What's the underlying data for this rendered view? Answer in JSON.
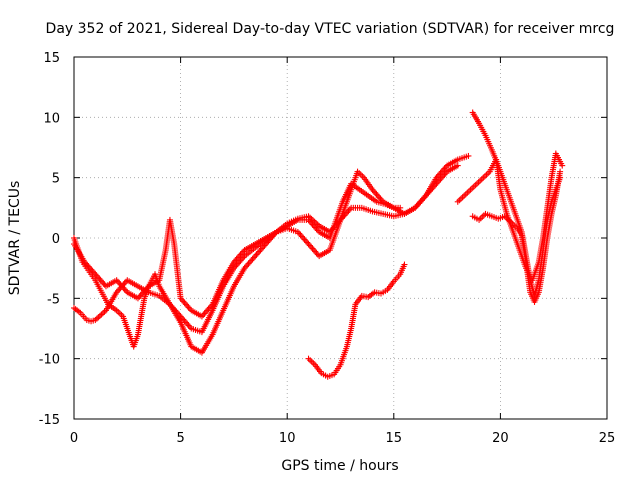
{
  "chart_data": {
    "type": "scatter",
    "title": "Day 352 of 2021, Sidereal Day-to-day VTEC variation (SDTVAR) for receiver mrcg",
    "xlabel": "GPS time / hours",
    "ylabel": "SDTVAR / TECUs",
    "xlim": [
      0,
      25
    ],
    "ylim": [
      -15,
      15
    ],
    "x_ticks": [
      "0",
      "5",
      "10",
      "15",
      "20",
      "25"
    ],
    "y_ticks": [
      "-15",
      "-10",
      "-5",
      "0",
      "5",
      "10",
      "15"
    ],
    "grid": true,
    "marker": "+",
    "color": "#ff0000",
    "series": [
      {
        "x": [
          0.0,
          0.3,
          0.6,
          0.8,
          1.0,
          1.5,
          2.0,
          2.5,
          3.0,
          3.5,
          4.0,
          4.5,
          5.0,
          5.5,
          6.0,
          6.5,
          7.0,
          7.5,
          8.0,
          8.5,
          9.0,
          9.5,
          10.0,
          10.5,
          11.0,
          11.5,
          12.0,
          12.5,
          13.0,
          13.5,
          14.0,
          14.5,
          15.0,
          15.5,
          16.0,
          16.5,
          17.0,
          17.5,
          18.0
        ],
        "y": [
          -5.8,
          -6.2,
          -6.8,
          -6.9,
          -6.8,
          -6.0,
          -4.5,
          -3.5,
          -4.0,
          -4.5,
          -4.8,
          -5.5,
          -6.5,
          -7.5,
          -7.8,
          -6.0,
          -4.0,
          -2.5,
          -1.5,
          -0.8,
          -0.2,
          0.5,
          1.2,
          1.6,
          1.8,
          1.0,
          0.5,
          1.5,
          2.5,
          2.5,
          2.2,
          2.0,
          1.8,
          2.0,
          2.5,
          3.5,
          4.5,
          5.5,
          6.0
        ]
      },
      {
        "x": [
          0.0,
          0.2,
          0.4,
          0.6,
          0.8,
          1.0,
          1.3,
          1.6,
          2.0,
          2.3,
          2.6,
          2.8,
          3.0,
          3.3,
          3.5,
          3.8,
          4.0,
          4.5,
          5.0,
          5.5,
          6.0,
          6.5,
          7.0,
          7.5,
          8.0,
          8.5,
          9.0,
          9.5,
          10.0,
          10.5,
          11.0,
          11.5,
          12.0,
          12.3,
          12.6,
          13.0,
          13.3,
          13.6,
          14.0,
          14.5,
          15.0,
          15.5,
          16.0,
          16.5,
          17.0,
          17.5,
          18.0,
          18.5
        ],
        "y": [
          0.0,
          -1.0,
          -2.0,
          -2.5,
          -3.0,
          -3.5,
          -4.5,
          -5.5,
          -6.0,
          -6.5,
          -8.0,
          -9.0,
          -8.0,
          -5.0,
          -4.0,
          -3.0,
          -4.0,
          -5.5,
          -7.0,
          -9.0,
          -9.5,
          -8.0,
          -6.0,
          -4.0,
          -2.5,
          -1.5,
          -0.5,
          0.5,
          0.8,
          0.5,
          -0.5,
          -1.5,
          -1.0,
          0.5,
          2.0,
          4.0,
          5.5,
          5.0,
          4.0,
          3.0,
          2.5,
          2.0,
          2.5,
          3.5,
          5.0,
          6.0,
          6.5,
          6.8
        ]
      },
      {
        "x": [
          0.0,
          0.5,
          1.0,
          1.5,
          2.0,
          2.5,
          3.0,
          3.5,
          4.0,
          4.3,
          4.5,
          4.7,
          5.0,
          5.5,
          6.0,
          6.5,
          7.0,
          7.5,
          8.0,
          8.5,
          9.0,
          9.5,
          10.0,
          10.5,
          11.0,
          11.5,
          12.0,
          12.3,
          12.6,
          13.0,
          13.4,
          13.8,
          14.2,
          14.6,
          15.0,
          15.3
        ],
        "y": [
          -0.5,
          -2.0,
          -3.0,
          -4.0,
          -3.5,
          -4.5,
          -5.0,
          -4.0,
          -3.5,
          -1.0,
          1.5,
          -0.5,
          -5.0,
          -6.0,
          -6.5,
          -5.5,
          -3.5,
          -2.0,
          -1.0,
          -0.5,
          0.0,
          0.5,
          1.0,
          1.5,
          1.5,
          0.5,
          0.0,
          1.5,
          3.0,
          4.5,
          4.0,
          3.5,
          3.0,
          2.8,
          2.5,
          2.5
        ]
      },
      {
        "x": [
          11.0,
          11.3,
          11.6,
          11.9,
          12.2,
          12.5,
          12.8,
          13.0,
          13.2,
          13.5,
          13.8,
          14.1,
          14.4,
          14.7,
          15.0,
          15.3,
          15.5
        ],
        "y": [
          -10.0,
          -10.5,
          -11.2,
          -11.5,
          -11.3,
          -10.5,
          -9.0,
          -7.5,
          -5.5,
          -4.8,
          -4.9,
          -4.5,
          -4.6,
          -4.3,
          -3.6,
          -3.0,
          -2.2
        ]
      },
      {
        "x": [
          18.7,
          19.0,
          19.3,
          19.6,
          19.9,
          20.2,
          20.5,
          20.8,
          21.0,
          21.2,
          21.4,
          21.6,
          21.8,
          22.0,
          22.2,
          22.4,
          22.6,
          22.8
        ],
        "y": [
          10.4,
          9.5,
          8.5,
          7.3,
          6.0,
          4.5,
          3.0,
          1.5,
          0.5,
          -1.5,
          -3.5,
          -4.8,
          -3.5,
          -1.0,
          1.5,
          3.0,
          4.0,
          5.0
        ]
      },
      {
        "x": [
          18.7,
          19.0,
          19.3,
          19.6,
          19.9,
          20.2,
          20.5,
          20.8,
          21.0,
          21.2,
          21.4,
          21.6,
          21.8,
          22.0,
          22.2,
          22.4,
          22.6,
          22.8
        ],
        "y": [
          1.8,
          1.5,
          2.0,
          1.8,
          1.6,
          1.8,
          1.3,
          0.8,
          0.2,
          -2.0,
          -4.5,
          -5.3,
          -4.5,
          -2.5,
          0.0,
          2.0,
          3.5,
          5.5
        ]
      },
      {
        "x": [
          18.0,
          18.3,
          18.6,
          18.9,
          19.2,
          19.5,
          19.8,
          20.0,
          20.3,
          20.6,
          20.9,
          21.2,
          21.5,
          21.8,
          22.0,
          22.2,
          22.4,
          22.6,
          22.9
        ],
        "y": [
          3.0,
          3.5,
          4.0,
          4.5,
          5.0,
          5.5,
          6.5,
          4.0,
          2.0,
          0.5,
          -1.0,
          -2.5,
          -3.5,
          -2.0,
          0.0,
          2.5,
          5.0,
          7.0,
          6.0
        ]
      }
    ]
  }
}
